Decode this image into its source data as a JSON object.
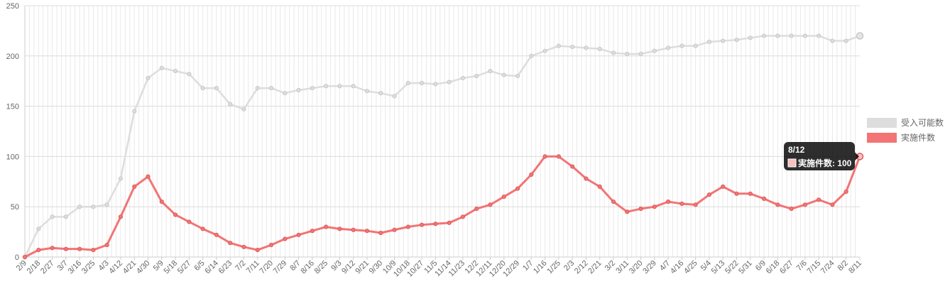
{
  "chart_data": {
    "type": "line",
    "x_tick_labels": [
      "2/9",
      "2/18",
      "2/27",
      "3/7",
      "3/16",
      "3/25",
      "4/3",
      "4/12",
      "4/21",
      "4/30",
      "5/9",
      "5/18",
      "5/27",
      "6/5",
      "6/14",
      "6/23",
      "7/2",
      "7/11",
      "7/20",
      "7/29",
      "8/7",
      "8/16",
      "8/25",
      "9/3",
      "9/12",
      "9/21",
      "9/30",
      "10/9",
      "10/18",
      "10/27",
      "11/5",
      "11/14",
      "11/23",
      "12/2",
      "12/11",
      "12/20",
      "12/29",
      "1/7",
      "1/16",
      "1/25",
      "2/3",
      "2/12",
      "2/21",
      "3/2",
      "3/11",
      "3/20",
      "3/29",
      "4/7",
      "4/16",
      "4/25",
      "5/4",
      "5/13",
      "5/22",
      "5/31",
      "6/9",
      "6/18",
      "6/27",
      "7/6",
      "7/15",
      "7/24",
      "8/2",
      "8/11"
    ],
    "y_ticks": [
      0,
      50,
      100,
      150,
      200,
      250
    ],
    "ylim": [
      0,
      250
    ],
    "grid": true,
    "legend_position": "right",
    "series": [
      {
        "name": "受入可能数",
        "color": "#dddddd",
        "values": [
          0,
          28,
          40,
          40,
          50,
          50,
          52,
          78,
          145,
          178,
          188,
          185,
          182,
          168,
          168,
          152,
          147,
          168,
          168,
          163,
          166,
          168,
          170,
          170,
          170,
          165,
          163,
          160,
          173,
          173,
          172,
          174,
          178,
          180,
          185,
          181,
          180,
          200,
          205,
          210,
          209,
          208,
          207,
          203,
          202,
          202,
          205,
          208,
          210,
          210,
          214,
          215,
          216,
          218,
          220,
          220,
          220,
          220,
          220,
          215,
          215,
          220
        ]
      },
      {
        "name": "実施件数",
        "color": "#f27475",
        "values": [
          0,
          7,
          9,
          8,
          8,
          7,
          12,
          40,
          70,
          80,
          55,
          42,
          35,
          28,
          22,
          14,
          10,
          7,
          12,
          18,
          22,
          26,
          30,
          28,
          27,
          26,
          24,
          27,
          30,
          32,
          33,
          34,
          40,
          48,
          52,
          60,
          68,
          82,
          100,
          100,
          90,
          78,
          70,
          55,
          45,
          48,
          50,
          55,
          53,
          52,
          62,
          70,
          63,
          63,
          58,
          52,
          48,
          52,
          57,
          52,
          65,
          100
        ]
      }
    ],
    "tooltip": {
      "title": "8/12",
      "series_name": "実施件数",
      "value": 100,
      "label": "実施件数: 100"
    }
  }
}
